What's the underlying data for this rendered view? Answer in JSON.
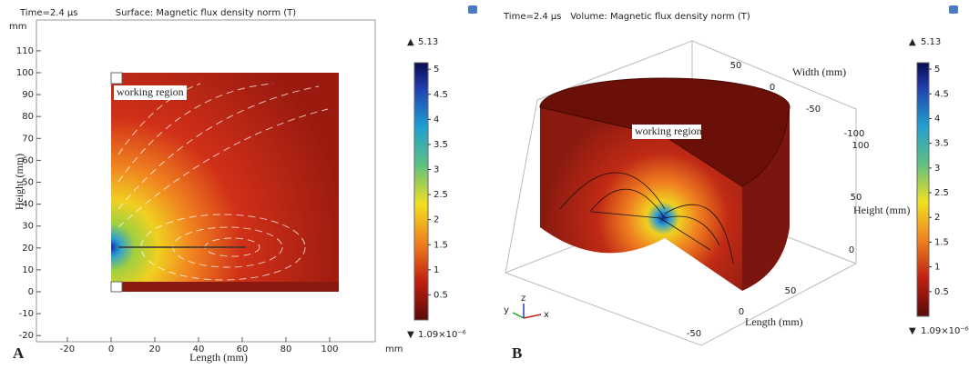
{
  "panel_a": {
    "label": "A",
    "time": "Time=2.4 µs",
    "title": "Surface: Magnetic flux density norm (T)",
    "x_axis_label": "Length (mm)",
    "y_axis_label": "Height (mm)",
    "x_unit": "mm",
    "y_unit": "mm",
    "xticks": [
      -20,
      0,
      20,
      40,
      60,
      80,
      100
    ],
    "yticks": [
      -20,
      -10,
      0,
      10,
      20,
      30,
      40,
      50,
      60,
      70,
      80,
      90,
      100,
      110
    ],
    "annotation": "working region",
    "colorbar": {
      "max": 5.13,
      "min": {
        "value": 1.09e-06,
        "label": "1.09×10⁻⁶"
      },
      "ticks": [
        0.5,
        1,
        1.5,
        2,
        2.5,
        3,
        3.5,
        4,
        4.5,
        5
      ]
    }
  },
  "panel_b": {
    "label": "B",
    "time": "Time=2.4 µs",
    "title": "Volume: Magnetic flux density norm (T)",
    "width_axis_label": "Width (mm)",
    "height_axis_label": "Height (mm)",
    "length_axis_label": "Length (mm)",
    "width_ticks": [
      50,
      0,
      -50,
      -100
    ],
    "height_ticks": [
      100,
      50,
      0
    ],
    "length_ticks": [
      50,
      0,
      -50
    ],
    "annotation": "working region",
    "triad": [
      "x",
      "y",
      "z"
    ],
    "colorbar": {
      "max": 5.13,
      "min": {
        "value": 1.09e-06,
        "label": "1.09×10⁻⁶"
      },
      "ticks": [
        0.5,
        1,
        1.5,
        2,
        2.5,
        3,
        3.5,
        4,
        4.5,
        5
      ]
    }
  }
}
